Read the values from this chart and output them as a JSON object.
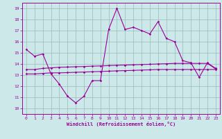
{
  "xlabel": "Windchill (Refroidissement éolien,°C)",
  "background_color": "#cce8e8",
  "line_color": "#990099",
  "grid_color": "#99bbbb",
  "xlim": [
    -0.5,
    23.5
  ],
  "ylim": [
    9.5,
    19.5
  ],
  "yticks": [
    10,
    11,
    12,
    13,
    14,
    15,
    16,
    17,
    18,
    19
  ],
  "xticks": [
    0,
    1,
    2,
    3,
    4,
    5,
    6,
    7,
    8,
    9,
    10,
    11,
    12,
    13,
    14,
    15,
    16,
    17,
    18,
    19,
    20,
    21,
    22,
    23
  ],
  "wavy_x": [
    0,
    1,
    2,
    3,
    4,
    5,
    6,
    7,
    8,
    9,
    10,
    11,
    12,
    13,
    14,
    15,
    16,
    17,
    18,
    19,
    20,
    21,
    22,
    23
  ],
  "wavy_y": [
    15.3,
    14.7,
    14.9,
    13.1,
    12.2,
    11.1,
    10.5,
    11.1,
    12.5,
    12.5,
    17.1,
    19.0,
    17.1,
    17.3,
    17.0,
    16.7,
    17.8,
    16.3,
    16.0,
    14.3,
    14.1,
    12.8,
    14.1,
    13.6
  ],
  "flat1_x": [
    0,
    1,
    2,
    3,
    4,
    5,
    6,
    7,
    8,
    9,
    10,
    11,
    12,
    13,
    14,
    15,
    16,
    17,
    18,
    19,
    20,
    21,
    22,
    23
  ],
  "flat1_y": [
    13.5,
    13.5,
    13.6,
    13.65,
    13.7,
    13.72,
    13.75,
    13.77,
    13.8,
    13.82,
    13.85,
    13.88,
    13.9,
    13.92,
    13.95,
    13.97,
    14.0,
    14.02,
    14.05,
    14.05,
    14.05,
    14.05,
    14.05,
    13.55
  ],
  "flat2_x": [
    0,
    1,
    2,
    3,
    4,
    5,
    6,
    7,
    8,
    9,
    10,
    11,
    12,
    13,
    14,
    15,
    16,
    17,
    18,
    19,
    20,
    21,
    22,
    23
  ],
  "flat2_y": [
    13.1,
    13.1,
    13.15,
    13.2,
    13.2,
    13.22,
    13.25,
    13.27,
    13.3,
    13.32,
    13.35,
    13.38,
    13.4,
    13.42,
    13.45,
    13.47,
    13.5,
    13.5,
    13.5,
    13.5,
    13.5,
    13.5,
    13.5,
    13.5
  ]
}
